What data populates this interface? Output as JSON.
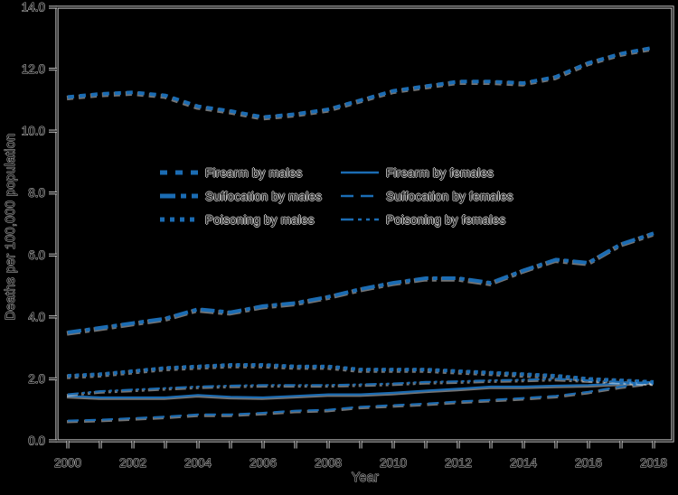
{
  "figure": {
    "background": "#000000",
    "axis_halo_color": "#cdcdcd",
    "axis_core_color": "#141414",
    "text_fill": "#0d0d0d",
    "text_outline": "#c3c3c3"
  },
  "chart_data": {
    "type": "line",
    "title": "",
    "xlabel": "Year",
    "ylabel": "Deaths per 100,000 population",
    "line_color": "#1b6cb3",
    "grid": false,
    "legend_position": "inside upper-left, two columns",
    "x": [
      2000,
      2001,
      2002,
      2003,
      2004,
      2005,
      2006,
      2007,
      2008,
      2009,
      2010,
      2011,
      2012,
      2013,
      2014,
      2015,
      2016,
      2017,
      2018
    ],
    "xlim": [
      1999.67,
      2018.58
    ],
    "ylim": [
      0,
      14
    ],
    "y_tick_labels": [
      "0.0",
      "2.0",
      "4.0",
      "6.0",
      "8.0",
      "10.0",
      "12.0",
      "14.0"
    ],
    "x_tick_label_years": [
      2000,
      2002,
      2004,
      2006,
      2008,
      2010,
      2012,
      2014,
      2016,
      2018
    ],
    "series": [
      {
        "name": "Firearm by males",
        "style": "thick-dash",
        "values": [
          11.1,
          11.2,
          11.25,
          11.15,
          10.8,
          10.65,
          10.45,
          10.55,
          10.7,
          11.0,
          11.3,
          11.45,
          11.6,
          11.6,
          11.55,
          11.75,
          12.2,
          12.5,
          12.7
        ]
      },
      {
        "name": "Suffocation by males",
        "style": "thick-dashdot",
        "values": [
          3.5,
          3.65,
          3.8,
          3.95,
          4.25,
          4.15,
          4.35,
          4.45,
          4.65,
          4.9,
          5.1,
          5.25,
          5.25,
          5.1,
          5.5,
          5.85,
          5.75,
          6.35,
          6.7
        ]
      },
      {
        "name": "Poisoning by males",
        "style": "thick-dot",
        "values": [
          2.1,
          2.15,
          2.25,
          2.35,
          2.4,
          2.45,
          2.45,
          2.4,
          2.4,
          2.3,
          2.3,
          2.3,
          2.25,
          2.2,
          2.15,
          2.1,
          2.0,
          1.95,
          1.9
        ]
      },
      {
        "name": "Firearm by females",
        "style": "thin-solid",
        "values": [
          1.45,
          1.4,
          1.4,
          1.4,
          1.48,
          1.42,
          1.4,
          1.45,
          1.5,
          1.5,
          1.55,
          1.62,
          1.68,
          1.75,
          1.75,
          1.78,
          1.8,
          1.85,
          1.9
        ]
      },
      {
        "name": "Suffocation by females",
        "style": "thin-dash",
        "values": [
          0.65,
          0.68,
          0.73,
          0.78,
          0.85,
          0.85,
          0.9,
          0.97,
          1.0,
          1.1,
          1.15,
          1.2,
          1.27,
          1.32,
          1.38,
          1.45,
          1.58,
          1.75,
          1.88
        ]
      },
      {
        "name": "Poisoning by females",
        "style": "thin-dashdotdot",
        "values": [
          1.5,
          1.6,
          1.65,
          1.7,
          1.75,
          1.78,
          1.8,
          1.8,
          1.8,
          1.82,
          1.85,
          1.9,
          1.92,
          1.95,
          1.97,
          2.0,
          1.95,
          1.9,
          1.85
        ]
      }
    ]
  }
}
